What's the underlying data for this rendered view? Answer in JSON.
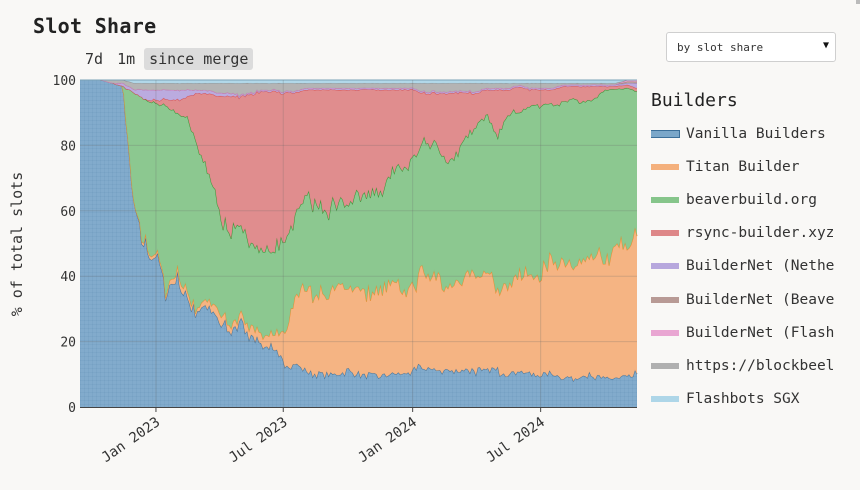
{
  "header": {
    "title": "Slot Share"
  },
  "range_tabs": [
    {
      "label": "7d",
      "active": false
    },
    {
      "label": "1m",
      "active": false
    },
    {
      "label": "since merge",
      "active": true
    }
  ],
  "sort_select": {
    "value": "by slot share"
  },
  "legend": {
    "title": "Builders",
    "items": [
      {
        "label": "Vanilla Builders",
        "color": "#7ba7c9"
      },
      {
        "label": "Titan Builder",
        "color": "#f4b07c"
      },
      {
        "label": "beaverbuild.org",
        "color": "#86c58a"
      },
      {
        "label": "rsync-builder.xyz",
        "color": "#de8788"
      },
      {
        "label": "BuilderNet (Nethe",
        "color": "#b7a7dd"
      },
      {
        "label": "BuilderNet (Beave",
        "color": "#b89a95"
      },
      {
        "label": "BuilderNet (Flash",
        "color": "#e9a6d2"
      },
      {
        "label": "https://blockbeel",
        "color": "#b0b0b0"
      },
      {
        "label": "Flashbots SGX",
        "color": "#aed6e8"
      }
    ]
  },
  "chart_data": {
    "type": "area",
    "stacked": true,
    "ylabel": "% of total slots",
    "ylim": [
      0,
      100
    ],
    "yticks": [
      0,
      20,
      40,
      60,
      80,
      100
    ],
    "xticks": [
      "Jan 2023",
      "Jul 2023",
      "Jan 2024",
      "Jul 2024"
    ],
    "xlim": [
      "2022-09-15",
      "2024-11-15"
    ],
    "grid": true,
    "legend_position": "right",
    "x": [
      "2022-09-15",
      "2022-10-15",
      "2022-11-01",
      "2022-11-15",
      "2022-12-01",
      "2022-12-15",
      "2023-01-01",
      "2023-01-15",
      "2023-02-01",
      "2023-02-15",
      "2023-03-01",
      "2023-03-15",
      "2023-04-01",
      "2023-04-15",
      "2023-05-01",
      "2023-05-15",
      "2023-06-01",
      "2023-06-15",
      "2023-07-01",
      "2023-07-15",
      "2023-08-01",
      "2023-08-15",
      "2023-09-01",
      "2023-09-15",
      "2023-10-01",
      "2023-10-15",
      "2023-11-01",
      "2023-11-15",
      "2023-12-01",
      "2023-12-15",
      "2024-01-01",
      "2024-01-15",
      "2024-02-01",
      "2024-02-15",
      "2024-03-01",
      "2024-03-15",
      "2024-04-01",
      "2024-04-15",
      "2024-05-01",
      "2024-05-15",
      "2024-06-01",
      "2024-06-15",
      "2024-07-01",
      "2024-07-15",
      "2024-08-01",
      "2024-08-15",
      "2024-09-01",
      "2024-09-15",
      "2024-10-01",
      "2024-10-15",
      "2024-11-01",
      "2024-11-15"
    ],
    "series": [
      {
        "name": "Vanilla Builders",
        "color": "#7ba7c9",
        "line": "#3c6f99",
        "values": [
          100,
          100,
          99,
          98,
          60,
          50,
          45,
          36,
          38,
          32,
          29,
          30,
          26,
          23,
          25,
          23,
          19,
          17,
          14,
          13,
          11,
          10,
          10,
          10,
          11,
          10,
          10,
          9,
          10,
          10,
          11,
          12,
          11,
          11,
          11,
          12,
          11,
          11,
          11,
          10,
          11,
          10,
          10,
          10,
          9,
          9,
          10,
          9,
          9,
          9,
          9,
          10
        ]
      },
      {
        "name": "Titan Builder",
        "color": "#f4b07c",
        "line": "#f08a2c",
        "values": [
          0,
          0,
          0,
          0,
          0,
          1,
          1,
          1,
          2,
          2,
          1,
          2,
          3,
          2,
          2,
          3,
          3,
          4,
          8,
          20,
          25,
          25,
          24,
          26,
          26,
          27,
          25,
          25,
          27,
          25,
          27,
          28,
          30,
          27,
          26,
          28,
          29,
          30,
          26,
          28,
          29,
          30,
          32,
          33,
          34,
          33,
          35,
          37,
          38,
          40,
          40,
          42
        ]
      },
      {
        "name": "beaverbuild.org",
        "color": "#86c58a",
        "line": "#2f962f",
        "values": [
          0,
          0,
          0,
          0,
          36,
          43,
          47,
          55,
          50,
          55,
          50,
          40,
          30,
          27,
          28,
          25,
          25,
          25,
          28,
          24,
          27,
          27,
          27,
          25,
          27,
          28,
          30,
          30,
          34,
          38,
          38,
          40,
          39,
          40,
          38,
          42,
          46,
          48,
          46,
          52,
          50,
          52,
          50,
          50,
          50,
          52,
          48,
          48,
          50,
          48,
          48,
          44
        ]
      },
      {
        "name": "rsync-builder.xyz",
        "color": "#de8788",
        "line": "#d94c4c",
        "values": [
          0,
          0,
          0,
          0,
          0,
          0,
          1,
          2,
          4,
          6,
          16,
          24,
          36,
          43,
          40,
          45,
          50,
          50,
          46,
          39,
          34,
          35,
          36,
          36,
          33,
          32,
          32,
          33,
          26,
          24,
          21,
          16,
          16,
          18,
          21,
          14,
          10,
          8,
          14,
          7,
          8,
          5,
          5,
          4,
          5,
          4,
          5,
          4,
          1,
          1,
          1,
          1
        ]
      },
      {
        "name": "BuilderNet (Nethe",
        "color": "#b7a7dd",
        "line": "#9a86cc",
        "values": [
          0,
          0,
          0,
          1,
          1,
          3,
          3,
          3,
          3,
          2,
          1,
          1,
          1,
          1,
          0.5,
          0.5,
          0.5,
          0.5,
          0.5,
          0.5,
          0.5,
          0.5,
          0.5,
          0.5,
          0.5,
          0.5,
          0.5,
          0.5,
          0.5,
          0.5,
          0.5,
          0.5,
          0.5,
          0.5,
          0.5,
          0.5,
          0.5,
          0.5,
          0.5,
          0.5,
          0.5,
          0.5,
          0.5,
          0.5,
          0.5,
          0.5,
          0.5,
          0.5,
          0.5,
          0.5,
          0.5,
          1.5
        ]
      },
      {
        "name": "BuilderNet (Beave",
        "color": "#b89a95",
        "line": "#9c7a73",
        "values": [
          0,
          0,
          0,
          0,
          0,
          0,
          0,
          0,
          0,
          0,
          0,
          0,
          0,
          0,
          0,
          0,
          0,
          0,
          0,
          0,
          0,
          0,
          0,
          0,
          0,
          0,
          0,
          0,
          0,
          0,
          0,
          0,
          0,
          0,
          0,
          0,
          0,
          0,
          0,
          0,
          0,
          0,
          0,
          0,
          0,
          0,
          0,
          0,
          0,
          0,
          0.5,
          0.5
        ]
      },
      {
        "name": "BuilderNet (Flash",
        "color": "#e9a6d2",
        "line": "#d47cbd",
        "values": [
          0,
          0,
          0,
          0,
          0,
          0,
          0,
          0,
          0,
          0,
          0,
          0,
          0,
          0,
          0,
          0,
          0,
          0,
          0,
          0,
          0,
          0,
          0,
          0,
          0,
          0,
          0,
          0,
          0,
          0,
          0,
          0,
          0,
          0,
          0,
          0,
          0,
          0,
          0,
          0,
          0,
          0,
          0,
          0,
          0,
          0,
          0,
          0,
          0,
          0,
          0.5,
          0.5
        ]
      },
      {
        "name": "https://blockbeel",
        "color": "#b0b0b0",
        "line": "#8c8c8c",
        "values": [
          0,
          0,
          1,
          1,
          2,
          2,
          2,
          2,
          2,
          2,
          2,
          2,
          3,
          3,
          3.5,
          3,
          2,
          2,
          2.5,
          2.5,
          1.5,
          1.5,
          1.5,
          1.5,
          1.5,
          1.5,
          1.5,
          1.5,
          1.5,
          1.5,
          1.5,
          2.5,
          2.5,
          2.5,
          2.5,
          2.5,
          2.5,
          1.5,
          1.5,
          1.5,
          0.5,
          1.5,
          1.5,
          1.5,
          0.5,
          0.5,
          0.5,
          0.5,
          0.5,
          0.5,
          0,
          0
        ]
      },
      {
        "name": "Flashbots SGX",
        "color": "#aed6e8",
        "line": "#7fb6d0",
        "values": [
          0,
          0,
          0,
          0,
          1,
          1,
          1,
          1,
          1,
          1,
          1,
          1,
          1,
          1,
          1,
          1,
          1,
          1,
          1,
          1,
          1,
          1,
          1,
          1,
          1,
          1,
          1,
          1,
          1,
          1,
          1,
          1,
          1,
          1,
          1,
          1,
          1,
          1,
          1,
          1,
          1,
          1,
          1,
          1,
          1,
          1,
          1,
          1,
          1,
          1,
          0,
          0
        ]
      }
    ]
  }
}
